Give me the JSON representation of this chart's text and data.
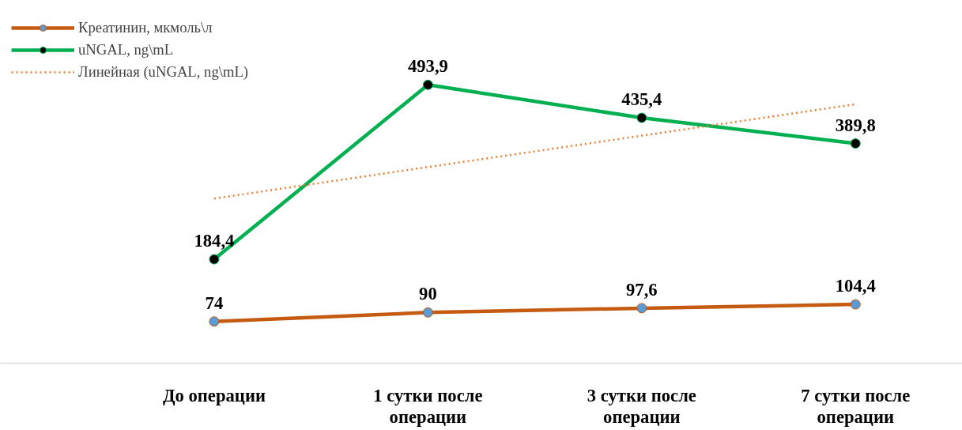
{
  "chart_data": {
    "type": "line",
    "categories": [
      "До операции",
      "1 сутки после операции",
      "3 сутки после операции",
      "7 сутки после операции"
    ],
    "series": [
      {
        "name": "Креатинин, мкмоль\\л",
        "color": "#c55a11",
        "colors": [
          "#5b9bd5",
          "#5b9bd5",
          "#5b9bd5",
          "#5b9bd5"
        ],
        "marker": "circle",
        "line_style": "solid",
        "values": [
          74,
          90,
          97.6,
          104.4
        ],
        "value_labels": [
          "74",
          "90",
          "97,6",
          "104,4"
        ]
      },
      {
        "name": "uNGAL, ng\\mL",
        "color": "#00b050",
        "colors": [
          "#000000",
          "#000000",
          "#000000",
          "#000000"
        ],
        "marker": "circle",
        "line_style": "solid",
        "values": [
          184.4,
          493.9,
          435.4,
          389.8
        ],
        "value_labels": [
          "184,4",
          "493,9",
          "435,4",
          "389,8"
        ]
      },
      {
        "name": "Линейная (uNGAL, ng\\mL)",
        "color": "#ed7d31",
        "marker": "none",
        "line_style": "dotted",
        "values": [
          292.2,
          348.0,
          403.7,
          459.5
        ]
      }
    ],
    "tick_labels": "x",
    "grid": false,
    "legend": "top left"
  }
}
